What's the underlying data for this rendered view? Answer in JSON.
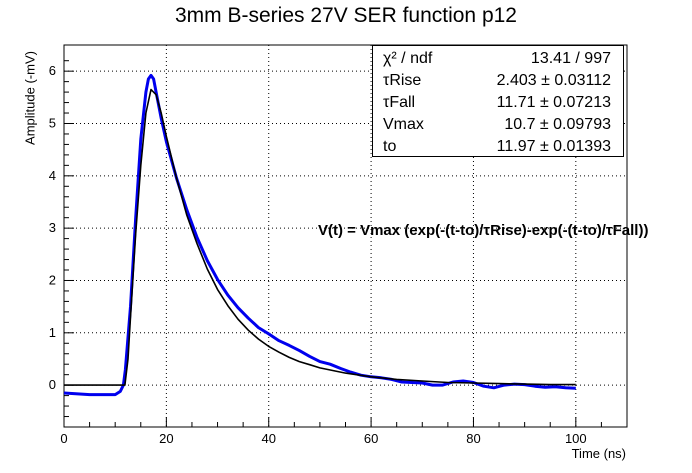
{
  "chart_data": {
    "type": "line",
    "title": "3mm B-series 27V SER function p12",
    "xlabel": "Time (ns)",
    "ylabel": "Amplitude (-mV)",
    "xlim": [
      0,
      110
    ],
    "ylim": [
      -0.8,
      6.5
    ],
    "x_ticks": [
      0,
      20,
      40,
      60,
      80,
      100
    ],
    "y_ticks": [
      0,
      1,
      2,
      3,
      4,
      5,
      6
    ],
    "grid": true,
    "series": [
      {
        "color": "#0000ee",
        "points": [
          [
            0,
            -0.15
          ],
          [
            5,
            -0.18
          ],
          [
            10,
            -0.18
          ],
          [
            11,
            -0.12
          ],
          [
            11.6,
            0.0
          ],
          [
            12,
            0.3
          ],
          [
            13,
            1.5
          ],
          [
            14,
            3.2
          ],
          [
            15,
            4.7
          ],
          [
            16,
            5.6
          ],
          [
            16.5,
            5.85
          ],
          [
            17,
            5.92
          ],
          [
            17.5,
            5.85
          ],
          [
            18,
            5.6
          ],
          [
            19,
            5.1
          ],
          [
            20,
            4.65
          ],
          [
            22,
            3.95
          ],
          [
            24,
            3.35
          ],
          [
            26,
            2.82
          ],
          [
            28,
            2.38
          ],
          [
            30,
            2.02
          ],
          [
            32,
            1.72
          ],
          [
            34,
            1.48
          ],
          [
            36,
            1.28
          ],
          [
            38,
            1.1
          ],
          [
            40,
            0.98
          ],
          [
            42,
            0.85
          ],
          [
            44,
            0.76
          ],
          [
            46,
            0.66
          ],
          [
            48,
            0.55
          ],
          [
            50,
            0.45
          ],
          [
            52,
            0.4
          ],
          [
            54,
            0.32
          ],
          [
            56,
            0.25
          ],
          [
            58,
            0.19
          ],
          [
            60,
            0.16
          ],
          [
            62,
            0.14
          ],
          [
            64,
            0.11
          ],
          [
            66,
            0.06
          ],
          [
            68,
            0.05
          ],
          [
            70,
            0.04
          ],
          [
            72,
            0.0
          ],
          [
            74,
            0.0
          ],
          [
            76,
            0.06
          ],
          [
            78,
            0.08
          ],
          [
            80,
            0.05
          ],
          [
            82,
            -0.02
          ],
          [
            84,
            -0.05
          ],
          [
            86,
            0.0
          ],
          [
            88,
            0.02
          ],
          [
            90,
            0.01
          ],
          [
            92,
            -0.02
          ],
          [
            94,
            -0.04
          ],
          [
            96,
            -0.03
          ],
          [
            98,
            -0.05
          ],
          [
            100,
            -0.06
          ]
        ]
      },
      {
        "color": "#000000",
        "points": [
          [
            0,
            0.0
          ],
          [
            11.9,
            0.0
          ],
          [
            12.5,
            0.5
          ],
          [
            13,
            1.3
          ],
          [
            14,
            2.9
          ],
          [
            15,
            4.2
          ],
          [
            16,
            5.2
          ],
          [
            17,
            5.65
          ],
          [
            18,
            5.55
          ],
          [
            19,
            5.2
          ],
          [
            20,
            4.75
          ],
          [
            22,
            3.95
          ],
          [
            24,
            3.25
          ],
          [
            26,
            2.7
          ],
          [
            28,
            2.22
          ],
          [
            30,
            1.83
          ],
          [
            32,
            1.52
          ],
          [
            34,
            1.26
          ],
          [
            36,
            1.05
          ],
          [
            38,
            0.88
          ],
          [
            40,
            0.74
          ],
          [
            42,
            0.63
          ],
          [
            44,
            0.53
          ],
          [
            46,
            0.45
          ],
          [
            48,
            0.39
          ],
          [
            50,
            0.33
          ],
          [
            55,
            0.23
          ],
          [
            60,
            0.16
          ],
          [
            65,
            0.11
          ],
          [
            70,
            0.08
          ],
          [
            75,
            0.05
          ],
          [
            80,
            0.04
          ],
          [
            85,
            0.03
          ],
          [
            90,
            0.02
          ],
          [
            95,
            0.01
          ],
          [
            100,
            0.01
          ]
        ]
      }
    ]
  },
  "stats": [
    {
      "name": "χ² / ndf",
      "value": "13.41 / 997"
    },
    {
      "name": "τRise",
      "value": "2.403 ± 0.03112"
    },
    {
      "name": "τFall",
      "value": "11.71 ± 0.07213"
    },
    {
      "name": "Vmax",
      "value": "10.7 ± 0.09793"
    },
    {
      "name": "to",
      "value": "11.97 ± 0.01393"
    }
  ],
  "formula": "V(t) = Vmax (exp(-(t-to)/τRise)-exp(-(t-to)/τFall))"
}
